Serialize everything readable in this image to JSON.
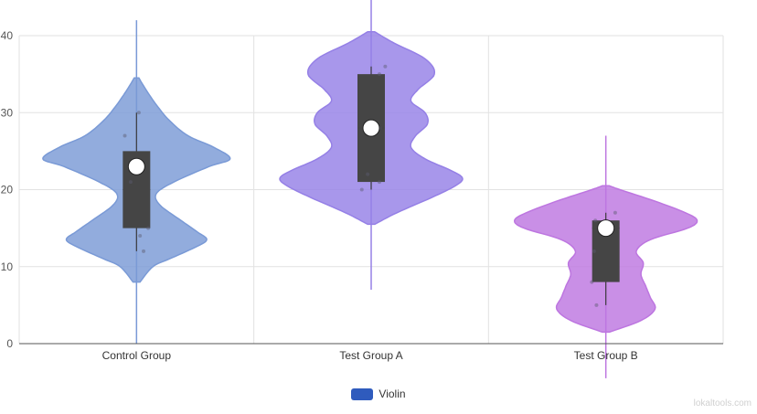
{
  "chart_data": {
    "type": "violin",
    "categories": [
      "Control Group",
      "Test Group A",
      "Test Group B"
    ],
    "ylim": [
      0,
      40
    ],
    "yticks": [
      0,
      10,
      20,
      30,
      40
    ],
    "grid": true,
    "legend": {
      "label": "Violin",
      "color": "#2f5bbd",
      "placement": "bottom"
    },
    "colors": [
      "#7a9ad6",
      "#9580e6",
      "#bd76e0"
    ],
    "groups": [
      {
        "name": "Control Group",
        "range": [
          8,
          34.5
        ],
        "density": [
          [
            8,
            0.03
          ],
          [
            10,
            0.14
          ],
          [
            11,
            0.28
          ],
          [
            12.5,
            0.5
          ],
          [
            13.5,
            0.6
          ],
          [
            14.5,
            0.52
          ],
          [
            16,
            0.38
          ],
          [
            18,
            0.2
          ],
          [
            19.5,
            0.17
          ],
          [
            21,
            0.32
          ],
          [
            23,
            0.62
          ],
          [
            24,
            0.8
          ],
          [
            25.5,
            0.66
          ],
          [
            27,
            0.44
          ],
          [
            29,
            0.28
          ],
          [
            31,
            0.17
          ],
          [
            33,
            0.08
          ],
          [
            34.5,
            0.02
          ]
        ],
        "box": {
          "q1": 15,
          "median": 20,
          "q3": 25,
          "whisker_low": 12,
          "whisker_high": 30
        },
        "mean": 23,
        "line_range": [
          0,
          42
        ],
        "points": [
          [
            0.02,
            30
          ],
          [
            -0.1,
            27
          ],
          [
            -0.03,
            23
          ],
          [
            -0.05,
            21
          ],
          [
            0.1,
            15
          ],
          [
            0.03,
            14
          ],
          [
            0.06,
            12
          ]
        ]
      },
      {
        "name": "Test Group A",
        "range": [
          15.5,
          40.5
        ],
        "density": [
          [
            15.5,
            0.03
          ],
          [
            17,
            0.22
          ],
          [
            19,
            0.52
          ],
          [
            20.5,
            0.72
          ],
          [
            21.5,
            0.78
          ],
          [
            22.5,
            0.68
          ],
          [
            24,
            0.46
          ],
          [
            25.5,
            0.34
          ],
          [
            27,
            0.38
          ],
          [
            28.5,
            0.48
          ],
          [
            30,
            0.46
          ],
          [
            31.5,
            0.34
          ],
          [
            33,
            0.4
          ],
          [
            35,
            0.54
          ],
          [
            37,
            0.46
          ],
          [
            39,
            0.2
          ],
          [
            40.5,
            0.03
          ]
        ],
        "box": {
          "q1": 21,
          "median": 28,
          "q3": 35,
          "whisker_low": 20,
          "whisker_high": 36
        },
        "mean": 28,
        "line_range": [
          7,
          45
        ],
        "points": [
          [
            0.12,
            36
          ],
          [
            0.07,
            35
          ],
          [
            0.07,
            28
          ],
          [
            -0.03,
            22
          ],
          [
            0.07,
            21
          ],
          [
            -0.08,
            20
          ]
        ]
      },
      {
        "name": "Test Group B",
        "range": [
          1.5,
          20.5
        ],
        "density": [
          [
            1.5,
            0.03
          ],
          [
            3,
            0.3
          ],
          [
            4.5,
            0.42
          ],
          [
            6,
            0.38
          ],
          [
            7.5,
            0.34
          ],
          [
            9,
            0.3
          ],
          [
            10.5,
            0.32
          ],
          [
            12,
            0.26
          ],
          [
            13.5,
            0.38
          ],
          [
            15,
            0.7
          ],
          [
            16,
            0.78
          ],
          [
            17,
            0.68
          ],
          [
            18.5,
            0.42
          ],
          [
            20,
            0.12
          ],
          [
            20.5,
            0.03
          ]
        ],
        "box": {
          "q1": 8,
          "median": 15,
          "q3": 16,
          "whisker_low": 5,
          "whisker_high": 17
        },
        "mean": 15,
        "line_range": [
          -4.5,
          27
        ],
        "points": [
          [
            0.08,
            17
          ],
          [
            -0.09,
            16
          ],
          [
            -0.1,
            12
          ],
          [
            -0.12,
            8
          ],
          [
            -0.08,
            5
          ]
        ]
      }
    ]
  },
  "watermark": "lokaltools.com"
}
